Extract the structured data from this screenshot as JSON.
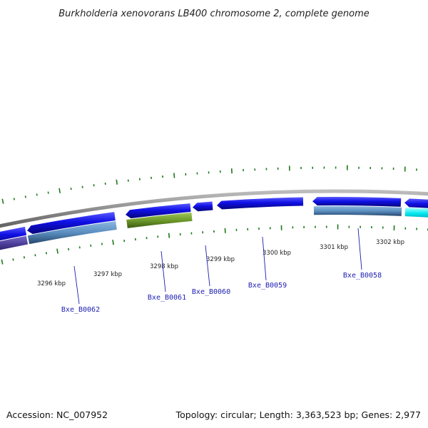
{
  "title": "Burkholderia xenovorans LB400 chromosome 2, complete genome",
  "footer": {
    "accession": "Accession: NC_007952",
    "summary": "Topology: circular; Length: 3,363,523 bp; Genes: 2,977"
  },
  "scale_labels": [
    "3296 kbp",
    "3297 kbp",
    "3298 kbp",
    "3299 kbp",
    "3300 kbp",
    "3301 kbp",
    "3302 kbp"
  ],
  "gene_labels": [
    "Bxe_B0062",
    "Bxe_B0061",
    "Bxe_B0060",
    "Bxe_B0059",
    "Bxe_B0058"
  ],
  "colors": {
    "backbone": "#8c8c8c",
    "cds": "#1010e6",
    "gene": "#5a8ec0",
    "trna": "#6e9a2a",
    "other": "#00e8f0",
    "tick": "#1b7a1b",
    "label_line": "#1c1cb0"
  }
}
